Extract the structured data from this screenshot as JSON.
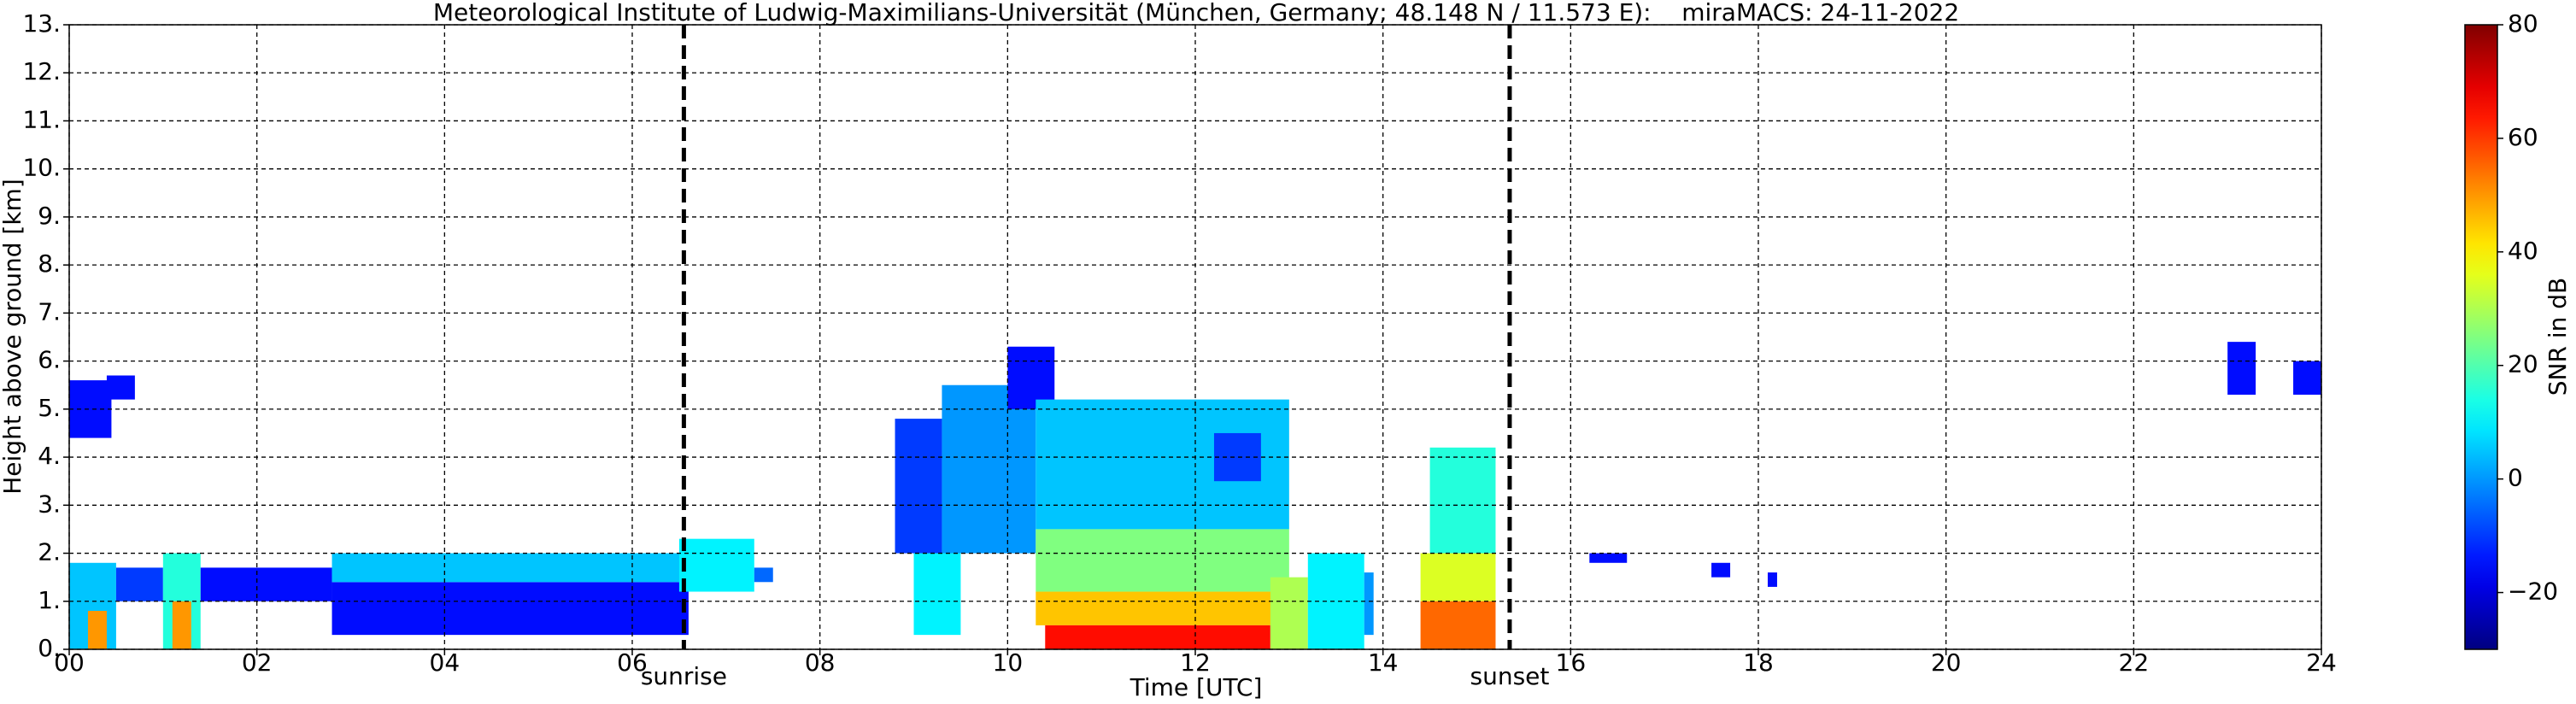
{
  "chart_data": {
    "type": "heatmap",
    "title": "Meteorological Institute of Ludwig-Maximilians-Universität (München, Germany; 48.148 N / 11.573 E):    miraMACS: 24-11-2022",
    "x_label": "Time [UTC]",
    "y_label": "Height above ground [km]",
    "colorbar_label": "SNR in dB",
    "colormap": "jet",
    "grid": true,
    "xlim": [
      0,
      24
    ],
    "xticks": [
      {
        "value": 0,
        "label": "00"
      },
      {
        "value": 2,
        "label": "02"
      },
      {
        "value": 4,
        "label": "04"
      },
      {
        "value": 6,
        "label": "06"
      },
      {
        "value": 8,
        "label": "08"
      },
      10,
      12,
      14,
      16,
      18,
      20,
      22,
      24
    ],
    "ylim": [
      0,
      13
    ],
    "yticks": [
      {
        "value": 0,
        "label": "0."
      },
      {
        "value": 1,
        "label": "1."
      },
      {
        "value": 2,
        "label": "2."
      },
      {
        "value": 3,
        "label": "3."
      },
      {
        "value": 4,
        "label": "4."
      },
      {
        "value": 5,
        "label": "5."
      },
      {
        "value": 6,
        "label": "6."
      },
      {
        "value": 7,
        "label": "7."
      },
      {
        "value": 8,
        "label": "8."
      },
      {
        "value": 9,
        "label": "9."
      },
      {
        "value": 10,
        "label": "10."
      },
      {
        "value": 11,
        "label": "11."
      },
      {
        "value": 12,
        "label": "12."
      },
      {
        "value": 13,
        "label": "13."
      }
    ],
    "clim": [
      -30,
      80
    ],
    "cticks": [
      {
        "value": -20,
        "label": "−20"
      },
      0,
      20,
      40,
      60,
      80
    ],
    "annotations": [
      {
        "x": 6.55,
        "label": "sunrise"
      },
      {
        "x": 15.35,
        "label": "sunset"
      }
    ],
    "cells": [
      {
        "t": [
          0,
          0.45
        ],
        "h": [
          4.4,
          5.6
        ],
        "snr": -15
      },
      {
        "t": [
          0.4,
          0.7
        ],
        "h": [
          5.2,
          5.7
        ],
        "snr": -15
      },
      {
        "t": [
          0,
          0.5
        ],
        "h": [
          0,
          1.8
        ],
        "snr": 5
      },
      {
        "t": [
          0.2,
          0.4
        ],
        "h": [
          0,
          0.8
        ],
        "snr": 50
      },
      {
        "t": [
          0.5,
          1.0
        ],
        "h": [
          1.0,
          1.7
        ],
        "snr": -10
      },
      {
        "t": [
          1.0,
          1.4
        ],
        "h": [
          0,
          2.0
        ],
        "snr": 15
      },
      {
        "t": [
          1.1,
          1.3
        ],
        "h": [
          0,
          1.0
        ],
        "snr": 50
      },
      {
        "t": [
          1.4,
          2.8
        ],
        "h": [
          1.0,
          1.7
        ],
        "snr": -15
      },
      {
        "t": [
          2.8,
          6.6
        ],
        "h": [
          0.3,
          1.4
        ],
        "snr": -15
      },
      {
        "t": [
          2.8,
          6.6
        ],
        "h": [
          1.4,
          2.0
        ],
        "snr": 5
      },
      {
        "t": [
          6.5,
          7.3
        ],
        "h": [
          1.2,
          2.3
        ],
        "snr": 10
      },
      {
        "t": [
          7.3,
          7.5
        ],
        "h": [
          1.4,
          1.7
        ],
        "snr": -5
      },
      {
        "t": [
          8.8,
          9.3
        ],
        "h": [
          2.0,
          4.8
        ],
        "snr": -10
      },
      {
        "t": [
          9.0,
          9.5
        ],
        "h": [
          0.3,
          2.0
        ],
        "snr": 10
      },
      {
        "t": [
          9.3,
          10.3
        ],
        "h": [
          2.0,
          5.5
        ],
        "snr": 0
      },
      {
        "t": [
          10.0,
          10.5
        ],
        "h": [
          5.0,
          6.3
        ],
        "snr": -15
      },
      {
        "t": [
          10.3,
          13.0
        ],
        "h": [
          2.5,
          5.2
        ],
        "snr": 5
      },
      {
        "t": [
          10.3,
          13.0
        ],
        "h": [
          1.2,
          2.5
        ],
        "snr": 25
      },
      {
        "t": [
          10.3,
          13.0
        ],
        "h": [
          0.5,
          1.2
        ],
        "snr": 45
      },
      {
        "t": [
          10.4,
          12.8
        ],
        "h": [
          0,
          0.5
        ],
        "snr": 65
      },
      {
        "t": [
          12.2,
          12.7
        ],
        "h": [
          3.5,
          4.5
        ],
        "snr": -10
      },
      {
        "t": [
          12.8,
          13.2
        ],
        "h": [
          0,
          1.5
        ],
        "snr": 30
      },
      {
        "t": [
          13.2,
          13.8
        ],
        "h": [
          0,
          2.0
        ],
        "snr": 10
      },
      {
        "t": [
          13.8,
          13.9
        ],
        "h": [
          0.3,
          1.6
        ],
        "snr": 0
      },
      {
        "t": [
          14.5,
          15.2
        ],
        "h": [
          2.0,
          4.2
        ],
        "snr": 15
      },
      {
        "t": [
          14.4,
          15.2
        ],
        "h": [
          1.0,
          2.0
        ],
        "snr": 35
      },
      {
        "t": [
          14.4,
          15.2
        ],
        "h": [
          0,
          1.0
        ],
        "snr": 55
      },
      {
        "t": [
          16.2,
          16.6
        ],
        "h": [
          1.8,
          2.0
        ],
        "snr": -15
      },
      {
        "t": [
          17.5,
          17.7
        ],
        "h": [
          1.5,
          1.8
        ],
        "snr": -15
      },
      {
        "t": [
          18.1,
          18.2
        ],
        "h": [
          1.3,
          1.6
        ],
        "snr": -15
      },
      {
        "t": [
          23.0,
          23.3
        ],
        "h": [
          5.3,
          6.4
        ],
        "snr": -15
      },
      {
        "t": [
          23.7,
          24.0
        ],
        "h": [
          5.3,
          6.0
        ],
        "snr": -15
      }
    ]
  }
}
